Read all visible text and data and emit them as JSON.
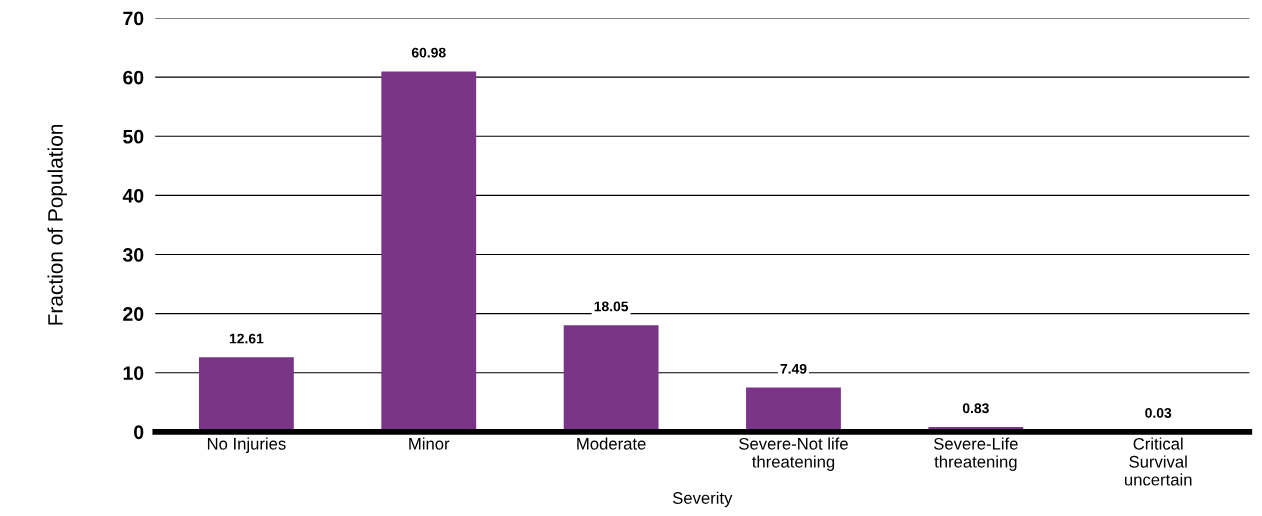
{
  "chart_data": {
    "type": "bar",
    "xlabel": "Severity",
    "ylabel": "Fraction of Population",
    "categories": [
      "No Injuries",
      "Minor",
      "Moderate",
      "Severe-Not life\nthreatening",
      "Severe-Life\nthreatening",
      "Critical\nSurvival\nuncertain"
    ],
    "values": [
      12.61,
      60.98,
      18.05,
      7.49,
      0.83,
      0.03
    ],
    "color": "#7a3589",
    "ylim": [
      0,
      70
    ],
    "yticks": [
      0,
      10,
      20,
      30,
      40,
      50,
      60,
      70
    ],
    "grid": "y",
    "data_labels": true,
    "legend": false
  }
}
